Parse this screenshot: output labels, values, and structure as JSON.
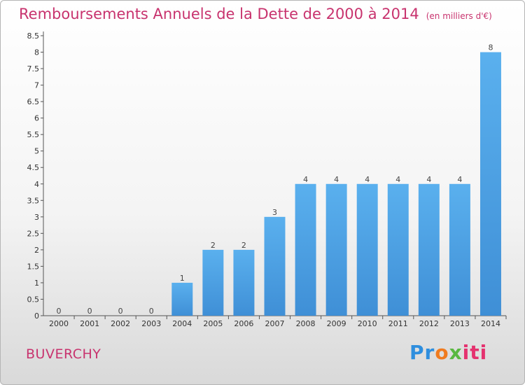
{
  "chart_data": {
    "type": "bar",
    "title": "Remboursements Annuels de la Dette de 2000 à 2014",
    "unit_note": "(en milliers d'€)",
    "categories": [
      "2000",
      "2001",
      "2002",
      "2003",
      "2004",
      "2005",
      "2006",
      "2007",
      "2008",
      "2009",
      "2010",
      "2011",
      "2012",
      "2013",
      "2014"
    ],
    "values": [
      0,
      0,
      0,
      0,
      1,
      2,
      2,
      3,
      4,
      4,
      4,
      4,
      4,
      4,
      8
    ],
    "value_labels": [
      "0",
      "0",
      "0",
      "0",
      "1",
      "2",
      "2",
      "3",
      "4",
      "4",
      "4",
      "4",
      "4",
      "4",
      "8"
    ],
    "y_ticks": [
      "0",
      "0.5",
      "1",
      "1.5",
      "2",
      "2.5",
      "3",
      "3.5",
      "4",
      "4.5",
      "5",
      "5.5",
      "6",
      "6.5",
      "7",
      "7.5",
      "8",
      "8.5"
    ],
    "ylim": [
      0,
      8.5
    ],
    "xlabel": "",
    "ylabel": "",
    "grid": false,
    "bar_color": "#3f8fd6",
    "bar_color_light": "#5ab0ee"
  },
  "footer": {
    "commune": "BUVERCHY",
    "logo": {
      "part1": "Pr",
      "part2": "o",
      "part3": "x",
      "part4": "iti"
    }
  }
}
